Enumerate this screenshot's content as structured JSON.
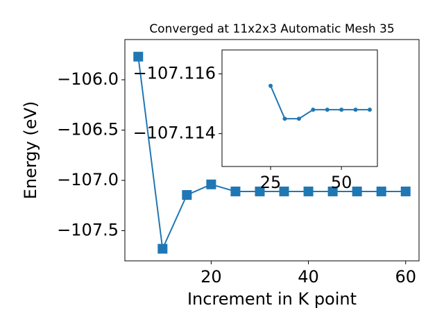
{
  "chart_data": [
    {
      "type": "line",
      "title": "Converged at 11x2x3 Automatic Mesh 35",
      "x_label": "Increment in K point",
      "y_label": "Energy (eV)",
      "x": [
        5,
        10,
        15,
        20,
        25,
        30,
        35,
        40,
        45,
        50,
        55,
        60
      ],
      "series": [
        {
          "color": "#1f77b4",
          "marker": "square",
          "values": [
            -105.77,
            -107.68,
            -107.145,
            -107.04,
            -107.11,
            -107.11,
            -107.11,
            -107.11,
            -107.11,
            -107.11,
            -107.11,
            -107.11
          ]
        }
      ],
      "xlim": [
        2.25,
        62.75
      ],
      "xticks": [
        20,
        40,
        60
      ],
      "ylim": [
        -107.8,
        -105.6
      ],
      "yticks": [
        {
          "value": -106.0,
          "label": "−106.0"
        },
        {
          "value": -106.5,
          "label": "−106.5"
        },
        {
          "value": -107.0,
          "label": "−107.0"
        },
        {
          "value": -107.5,
          "label": "−107.5"
        }
      ]
    },
    {
      "type": "line",
      "x": [
        25,
        30,
        35,
        40,
        45,
        50,
        55,
        60
      ],
      "series": [
        {
          "color": "#1f77b4",
          "marker": "circle",
          "values": [
            -107.1156,
            -107.1145,
            -107.1145,
            -107.1148,
            -107.1148,
            -107.1148,
            -107.1148,
            -107.1148
          ]
        }
      ],
      "xlim": [
        7.84,
        62.7
      ],
      "xticks": [
        25,
        50
      ],
      "ylim": [
        -107.1129,
        -107.1168
      ],
      "yticks": [
        {
          "value": -107.116,
          "label": "−107.116"
        },
        {
          "value": -107.114,
          "label": "−107.114"
        }
      ]
    }
  ]
}
